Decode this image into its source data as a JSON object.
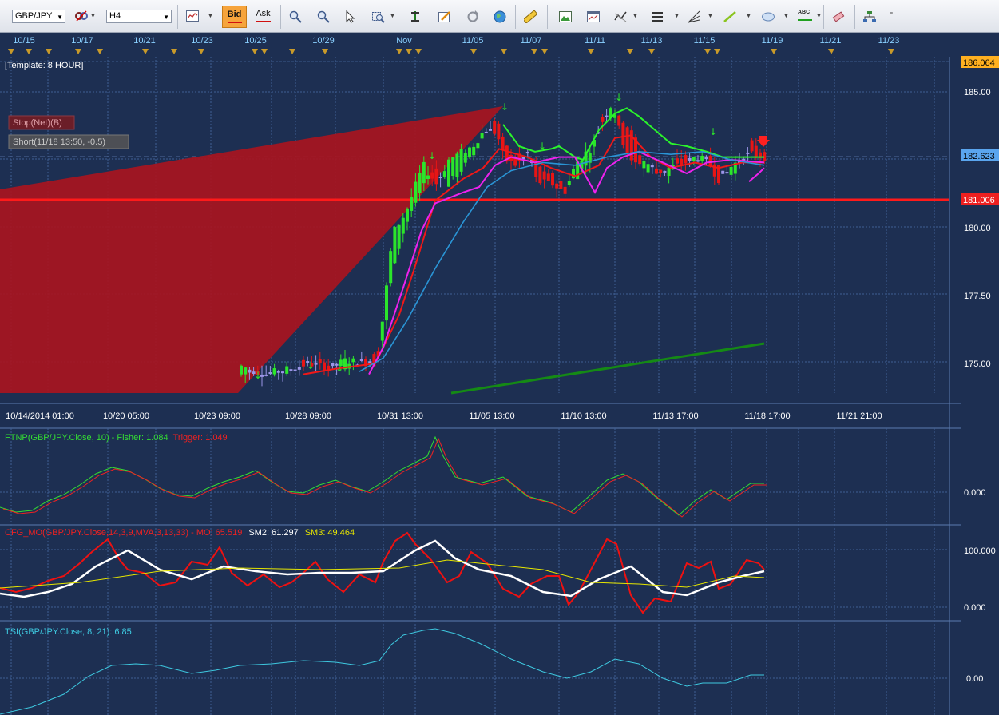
{
  "toolbar": {
    "symbol": "GBP/JPY",
    "timeframe": "H4",
    "bid_label": "Bid",
    "ask_label": "Ask",
    "abc_label": "ABC"
  },
  "top_dates": [
    "10/15",
    "10/17",
    "10/21",
    "10/23",
    "10/25",
    "10/29",
    "Nov",
    "11/05",
    "11/07",
    "11/11",
    "11/13",
    "11/15",
    "11/19",
    "11/21",
    "11/23"
  ],
  "main_panel": {
    "template_label": "[Template: 8 HOUR]",
    "stop_label": "Stop(Net)(B)",
    "short_label": "Short(11/18 13:50, -0.5)",
    "price_ticks": [
      "185.00",
      "180.00",
      "177.50",
      "175.00"
    ],
    "price_tag_top": "186.064",
    "price_tag_current": "182.623",
    "price_tag_stop": "181.006",
    "x_labels": [
      "10/14/2014 01:00",
      "10/20 05:00",
      "10/23 09:00",
      "10/28 09:00",
      "10/31 13:00",
      "11/05 13:00",
      "11/10 13:00",
      "11/13 17:00",
      "11/18 17:00",
      "11/21 21:00"
    ]
  },
  "ftnp_panel": {
    "label": "FTNP(GBP/JPY.Close, 10)  -  ",
    "fisher": "Fisher: 1.084",
    "trigger": "Trigger: 1.049",
    "tick": "0.000"
  },
  "cfg_panel": {
    "label": "CFG_MO(GBP/JPY.Close,14,3,9,MVA,3,13,33)  -  MO: 65.519",
    "sm2": "SM2: 61.297",
    "sm3": "SM3: 49.464",
    "ticks": [
      "100.000",
      "0.000"
    ]
  },
  "tsi_panel": {
    "label": "TSI(GBP/JPY.Close, 8, 21): 6.85",
    "tick": "0.00"
  },
  "colors": {
    "background": "#1d2f52",
    "grid": "#3f5f94",
    "bull": "#2be62b",
    "bear": "#e81515",
    "neutral": "#9b95e8",
    "stop_line": "#ff1a1a",
    "zone": "#a8151f",
    "upper_band": "#2bf52b",
    "mid_band": "#f01818",
    "lower_band": "#ee22ee",
    "slow_ma": "#2a95d6",
    "trend": "#158a15",
    "fisher": "#33dd33",
    "trigger": "#ee2222",
    "mo": "#ee1111",
    "sm2": "#ffffff",
    "sm3": "#e6e600",
    "tsi": "#3ec9e0"
  }
}
